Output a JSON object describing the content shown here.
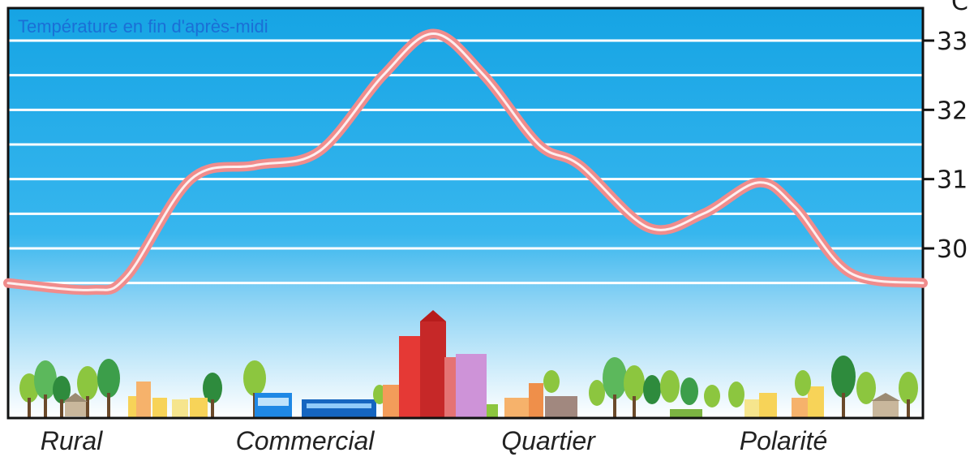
{
  "chart_data": {
    "type": "line",
    "title": "Température en fin d'après-midi",
    "unit": "°C",
    "y_ticks": [
      "30",
      "31",
      "32",
      "33"
    ],
    "ylim": [
      29.5,
      33.5
    ],
    "categories": [
      "Rural",
      "Commercial",
      "Quartier",
      "Polarité"
    ],
    "grid": true,
    "series": [
      {
        "values": [
          {
            "x": 0.0,
            "y": 29.5
          },
          {
            "x": 0.09,
            "y": 29.4
          },
          {
            "x": 0.13,
            "y": 29.6
          },
          {
            "x": 0.2,
            "y": 31.0
          },
          {
            "x": 0.27,
            "y": 31.2
          },
          {
            "x": 0.34,
            "y": 31.4
          },
          {
            "x": 0.41,
            "y": 32.5
          },
          {
            "x": 0.465,
            "y": 33.1
          },
          {
            "x": 0.52,
            "y": 32.5
          },
          {
            "x": 0.58,
            "y": 31.5
          },
          {
            "x": 0.625,
            "y": 31.2
          },
          {
            "x": 0.7,
            "y": 30.3
          },
          {
            "x": 0.76,
            "y": 30.5
          },
          {
            "x": 0.82,
            "y": 30.95
          },
          {
            "x": 0.86,
            "y": 30.6
          },
          {
            "x": 0.92,
            "y": 29.65
          },
          {
            "x": 1.0,
            "y": 29.5
          }
        ]
      }
    ]
  },
  "colors": {
    "sky_top": "#1aa7e6",
    "sky_bottom": "#ffffff",
    "gridline": "#ffffff",
    "curve_outer": "#f08c8c",
    "curve_inner": "#ffffff",
    "title": "#1a6fd6"
  }
}
